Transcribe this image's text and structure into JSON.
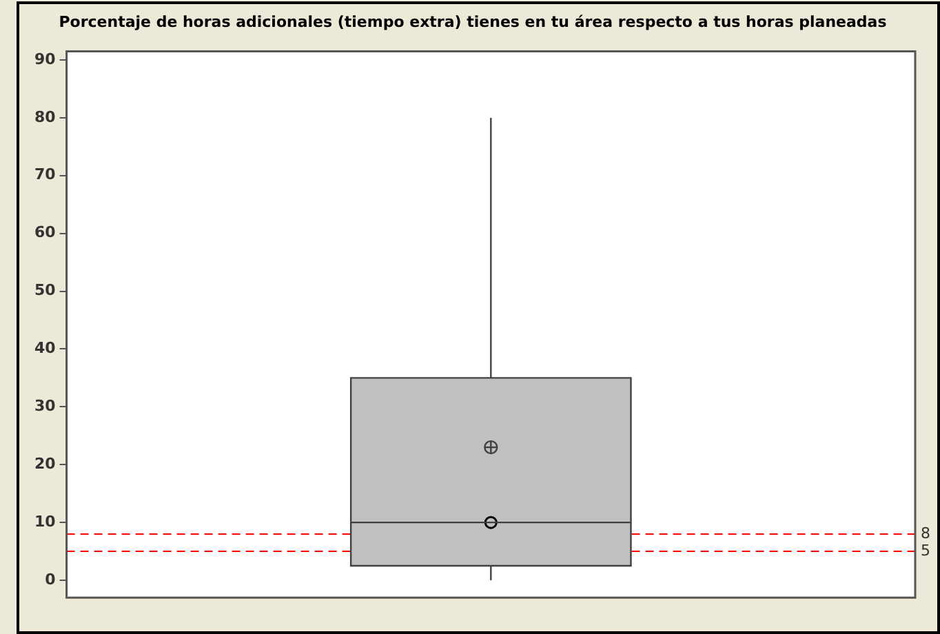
{
  "chart_data": {
    "type": "box",
    "title": "Porcentaje de horas adicionales (tiempo extra) tienes en tu área respecto a tus horas planeadas",
    "categories": [
      null
    ],
    "series": [
      {
        "color": "#c0c0c0",
        "boxes": [
          {
            "low": 0,
            "q1": 2.5,
            "median": 10,
            "q3": 35,
            "high": 80,
            "mean": 23
          }
        ]
      },
      {
        "type": "scatter",
        "color": "#000000",
        "values": [
          10
        ]
      }
    ],
    "marker": "circle",
    "ylim": [
      -3,
      91.5
    ],
    "yticks": [
      0,
      10,
      20,
      30,
      40,
      50,
      60,
      70,
      80,
      90
    ],
    "ref_lines": [
      {
        "axis": "y",
        "value": 8,
        "label": "8",
        "color": "#ff0000",
        "line_style": "dashed"
      },
      {
        "axis": "y",
        "value": 5,
        "label": "5",
        "color": "#ff0000",
        "line_style": "dashed"
      }
    ],
    "grid": false,
    "legend": false
  }
}
